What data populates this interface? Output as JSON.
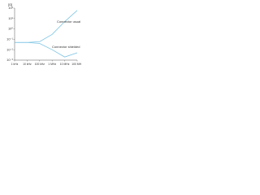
{
  "chart_data": {
    "type": "line",
    "y_label": "[Ω]",
    "log_x": true,
    "log_y": true,
    "x": [
      1000,
      10000,
      100000,
      1000000,
      10000000,
      100000000
    ],
    "series": [
      {
        "name": "Connector usual",
        "color": "#7cc4e4",
        "values": [
          0.05,
          0.05,
          0.06,
          0.3,
          5,
          60
        ]
      },
      {
        "name": "Connector shielded",
        "color": "#7cc4e4",
        "values": [
          0.05,
          0.05,
          0.04,
          0.01,
          0.002,
          0.005
        ]
      }
    ],
    "xlim": [
      1000,
      100000000
    ],
    "xticks": [
      {
        "value": 1000,
        "label": "1 kHz"
      },
      {
        "value": 10000,
        "label": "10 kHz"
      },
      {
        "value": 100000,
        "label": "100 kHz"
      },
      {
        "value": 1000000,
        "label": "1 MHz"
      },
      {
        "value": 10000000,
        "label": "10 MHz"
      },
      {
        "value": 100000000,
        "label": "100 MHz"
      }
    ],
    "ylim": [
      0.001,
      100
    ],
    "yticks": [
      {
        "value": 100,
        "label": "10²"
      },
      {
        "value": 10,
        "label": "10¹"
      },
      {
        "value": 1,
        "label": "10⁰"
      },
      {
        "value": 0.1,
        "label": "10⁻¹"
      },
      {
        "value": 0.01,
        "label": "10⁻²"
      },
      {
        "value": 0.001,
        "label": "10⁻³"
      }
    ]
  }
}
